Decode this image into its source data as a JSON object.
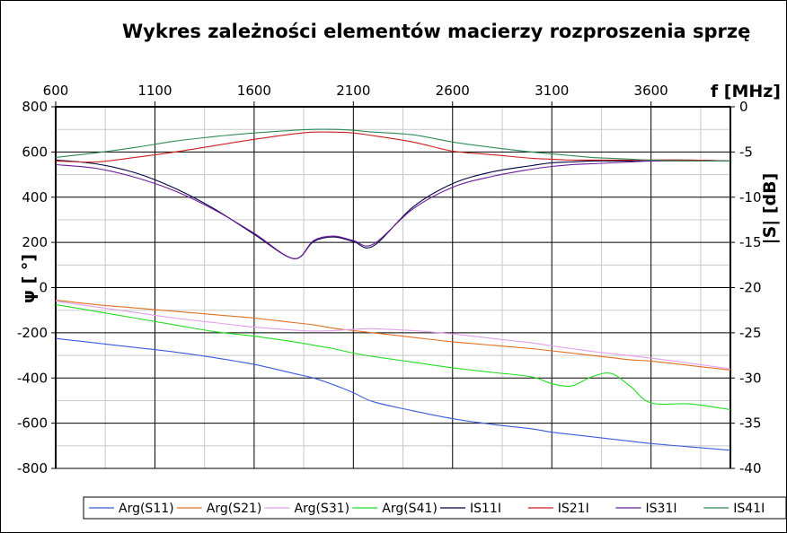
{
  "chart_data": {
    "type": "line",
    "title": "Wykres zależności elementów macierzy rozproszenia sprzę",
    "xlabel": "f [MHz]",
    "ylabel_left": "ψ [ °]",
    "ylabel_right": "|S| [dB]",
    "xlim": [
      600,
      4000
    ],
    "xticks": [
      "600",
      "1100",
      "1600",
      "2100",
      "2600",
      "3100",
      "3600"
    ],
    "ylim_left": [
      -800,
      800
    ],
    "yticks_left": [
      "800",
      "600",
      "400",
      "200",
      "0",
      "-200",
      "-400",
      "-600",
      "-800"
    ],
    "ylim_right": [
      -40,
      0
    ],
    "yticks_right": [
      "0",
      "-5",
      "-10",
      "-15",
      "-20",
      "-25",
      "-30",
      "-35",
      "-40"
    ],
    "grid": true,
    "legend_position": "bottom",
    "x": [
      600,
      800,
      1000,
      1200,
      1400,
      1600,
      1800,
      1900,
      2000,
      2100,
      2200,
      2400,
      2600,
      2800,
      3000,
      3100,
      3200,
      3300,
      3400,
      3500,
      3600,
      3800,
      4000
    ],
    "series": [
      {
        "name": "Arg(S11)",
        "axis": "left",
        "color": "#3b5bdb",
        "values": [
          -225,
          -245,
          -265,
          -285,
          -310,
          -340,
          -380,
          -400,
          -430,
          -465,
          -505,
          -545,
          -580,
          -605,
          -625,
          -640,
          -650,
          -660,
          -670,
          -680,
          -690,
          -705,
          -720
        ]
      },
      {
        "name": "Arg(S21)",
        "axis": "left",
        "color": "#e07020",
        "values": [
          -55,
          -75,
          -90,
          -105,
          -120,
          -135,
          -155,
          -165,
          -180,
          -190,
          -200,
          -220,
          -240,
          -255,
          -270,
          -280,
          -290,
          -300,
          -310,
          -320,
          -325,
          -345,
          -365
        ]
      },
      {
        "name": "Arg(S31)",
        "axis": "left",
        "color": "#e0a0e8",
        "values": [
          -60,
          -85,
          -110,
          -135,
          -155,
          -175,
          -188,
          -192,
          -190,
          -185,
          -182,
          -190,
          -205,
          -225,
          -245,
          -258,
          -270,
          -282,
          -292,
          -302,
          -312,
          -335,
          -360
        ]
      },
      {
        "name": "Arg(S41)",
        "axis": "left",
        "color": "#22dd22",
        "values": [
          -75,
          -105,
          -135,
          -165,
          -195,
          -215,
          -240,
          -255,
          -270,
          -290,
          -305,
          -330,
          -355,
          -375,
          -395,
          -425,
          -435,
          -395,
          -380,
          -440,
          -510,
          -515,
          -540
        ]
      },
      {
        "name": "IS11I",
        "axis": "right",
        "color": "#000040",
        "values": [
          -5.9,
          -6.3,
          -7.3,
          -9.0,
          -11.3,
          -14.1,
          -16.8,
          -14.9,
          -14.4,
          -14.9,
          -15.4,
          -11.1,
          -8.5,
          -7.2,
          -6.5,
          -6.2,
          -6.1,
          -6.0,
          -6.0,
          -6.0,
          -5.9,
          -5.9,
          -6.0
        ]
      },
      {
        "name": "IS21I",
        "axis": "right",
        "color": "#cc2020",
        "values": [
          -6.0,
          -6.1,
          -5.6,
          -5.0,
          -4.3,
          -3.6,
          -3.0,
          -2.8,
          -2.8,
          -2.9,
          -3.2,
          -3.9,
          -4.9,
          -5.3,
          -5.7,
          -5.8,
          -5.9,
          -5.9,
          -5.9,
          -5.9,
          -5.9,
          -5.9,
          -6.0
        ]
      },
      {
        "name": "IS31I",
        "axis": "right",
        "color": "#6a1b9a",
        "values": [
          -6.4,
          -6.8,
          -7.8,
          -9.3,
          -11.4,
          -14.0,
          -16.8,
          -14.8,
          -14.3,
          -14.8,
          -15.2,
          -11.3,
          -8.9,
          -7.7,
          -6.9,
          -6.6,
          -6.4,
          -6.3,
          -6.2,
          -6.1,
          -6.0,
          -6.0,
          -6.0
        ]
      },
      {
        "name": "IS41I",
        "axis": "right",
        "color": "#2e8b57",
        "values": [
          -5.6,
          -5.1,
          -4.5,
          -3.8,
          -3.3,
          -2.9,
          -2.6,
          -2.5,
          -2.5,
          -2.6,
          -2.8,
          -3.1,
          -3.9,
          -4.5,
          -5.0,
          -5.2,
          -5.4,
          -5.6,
          -5.7,
          -5.8,
          -5.9,
          -6.0,
          -6.0
        ]
      }
    ]
  }
}
